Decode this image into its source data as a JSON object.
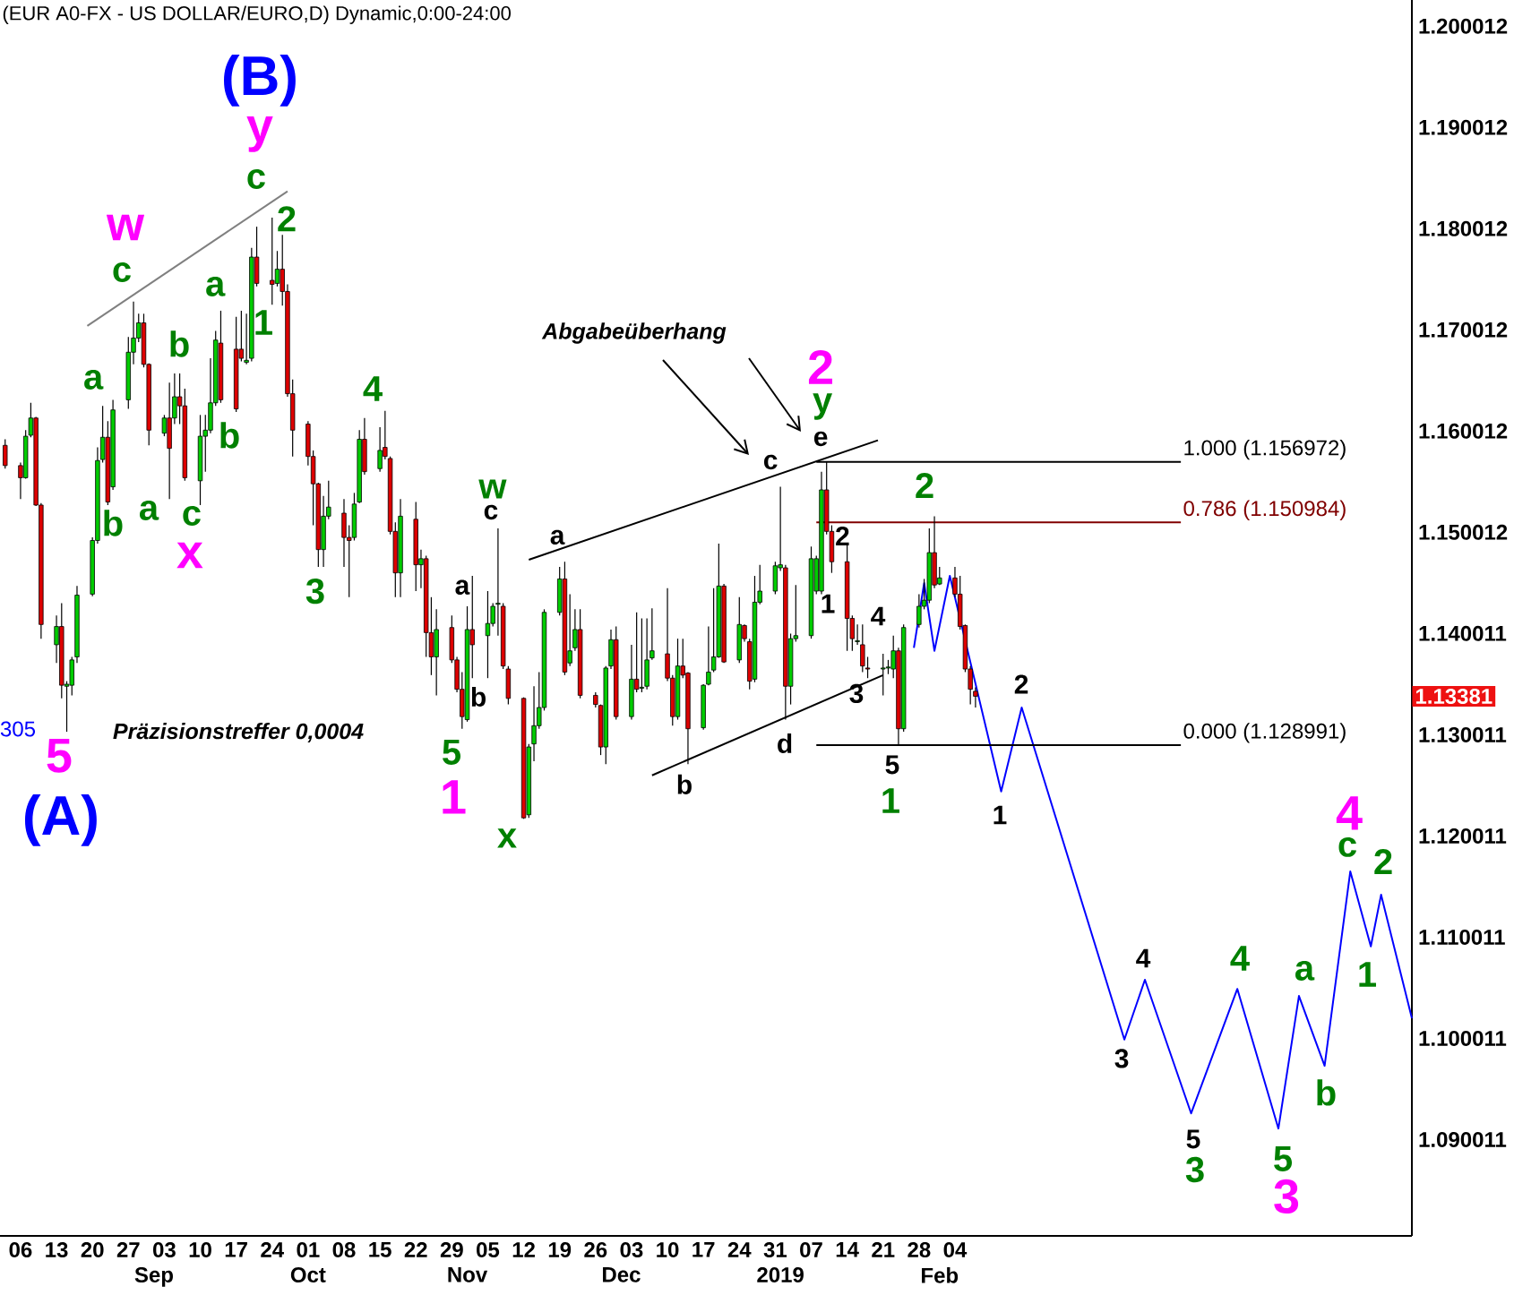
{
  "chart_data": {
    "type": "candlestick",
    "title": "(EUR A0-FX - US DOLLAR/EURO,D) Dynamic,0:00-24:00",
    "xlim": [
      "2018-08-02",
      "2019-05-04"
    ],
    "xticks": [
      {
        "value": "2018-08-06",
        "label": "06"
      },
      {
        "value": "2018-08-13",
        "label": "13"
      },
      {
        "value": "2018-08-20",
        "label": "20"
      },
      {
        "value": "2018-08-27",
        "label": "27"
      },
      {
        "value": "2018-09-03",
        "label": "03"
      },
      {
        "value": "2018-09-10",
        "label": "10"
      },
      {
        "value": "2018-09-17",
        "label": "17"
      },
      {
        "value": "2018-09-24",
        "label": "24"
      },
      {
        "value": "2018-10-01",
        "label": "01"
      },
      {
        "value": "2018-10-08",
        "label": "08"
      },
      {
        "value": "2018-10-15",
        "label": "15"
      },
      {
        "value": "2018-10-22",
        "label": "22"
      },
      {
        "value": "2018-10-29",
        "label": "29"
      },
      {
        "value": "2018-11-05",
        "label": "05"
      },
      {
        "value": "2018-11-12",
        "label": "12"
      },
      {
        "value": "2018-11-19",
        "label": "19"
      },
      {
        "value": "2018-11-26",
        "label": "26"
      },
      {
        "value": "2018-12-03",
        "label": "03"
      },
      {
        "value": "2018-12-10",
        "label": "10"
      },
      {
        "value": "2018-12-17",
        "label": "17"
      },
      {
        "value": "2018-12-24",
        "label": "24"
      },
      {
        "value": "2018-12-31",
        "label": "31"
      },
      {
        "value": "2019-01-07",
        "label": "07"
      },
      {
        "value": "2019-01-14",
        "label": "14"
      },
      {
        "value": "2019-01-21",
        "label": "21"
      },
      {
        "value": "2019-01-28",
        "label": "28"
      },
      {
        "value": "2019-02-04",
        "label": "04"
      }
    ],
    "x2lim": [
      "2018-08-02",
      "2019-05-04"
    ],
    "x2ticks": [
      {
        "value": "2018-09",
        "label": "Sep"
      },
      {
        "value": "2018-10",
        "label": "Oct"
      },
      {
        "value": "2018-11",
        "label": "Nov"
      },
      {
        "value": "2018-12",
        "label": "Dec"
      },
      {
        "value": "2019",
        "label": "2019"
      },
      {
        "value": "2019-02",
        "label": "Feb"
      }
    ],
    "ylim": [
      1.0805,
      1.2026
    ],
    "yticks": [
      1.090011,
      1.100011,
      1.110011,
      1.120011,
      1.130011,
      1.140011,
      1.150012,
      1.160012,
      1.170012,
      1.180012,
      1.190012,
      1.200012
    ],
    "series": [
      {
        "type": "line",
        "color": "#0000ff",
        "x": [
          "2019-01-27",
          "2019-01-29",
          "2019-01-31",
          "2019-02-03",
          "2019-02-13",
          "2019-02-17",
          "2019-03-09",
          "2019-03-13",
          "2019-03-22",
          "2019-03-31",
          "2019-04-08",
          "2019-04-12",
          "2019-04-17",
          "2019-04-22",
          "2019-04-26",
          "2019-04-28",
          "2019-05-04"
        ],
        "values": [
          1.1386,
          1.145,
          1.1383,
          1.1457,
          1.1244,
          1.1327,
          1.0999,
          1.1058,
          1.0926,
          1.1049,
          1.0911,
          1.1042,
          1.0973,
          1.1165,
          1.1091,
          1.1142,
          1.102
        ]
      },
      {
        "type": "line",
        "color": "#808080",
        "x": [
          "2018-08-19",
          "2018-09-27"
        ],
        "values": [
          1.1704,
          1.1837
        ]
      },
      {
        "type": "line",
        "color": "#000000",
        "x": [
          "2018-11-13",
          "2019-01-20"
        ],
        "values": [
          1.1473,
          1.1591
        ]
      },
      {
        "type": "line",
        "color": "#000000",
        "x": [
          "2018-12-07",
          "2019-01-21"
        ],
        "values": [
          1.126,
          1.1359
        ]
      },
      {
        "type": "line",
        "color": "#000000",
        "name": "1.000 (1.156972)",
        "x": [
          "2019-01-08",
          "2019-03-20"
        ],
        "values": [
          1.156972,
          1.156972
        ]
      },
      {
        "type": "line",
        "color": "#800000",
        "name": "0.786 (1.150984)",
        "x": [
          "2019-01-08",
          "2019-03-20"
        ],
        "values": [
          1.150984,
          1.150984
        ]
      },
      {
        "type": "line",
        "color": "#000000",
        "name": "0.000 (1.128991)",
        "x": [
          "2019-01-08",
          "2019-03-20"
        ],
        "values": [
          1.128991,
          1.128991
        ]
      },
      {
        "x": [
          "2018-08-03",
          "2018-08-06",
          "2018-08-07",
          "2018-08-08",
          "2018-08-09",
          "2018-08-10",
          "2018-08-13",
          "2018-08-14",
          "2018-08-15",
          "2018-08-16",
          "2018-08-17",
          "2018-08-20",
          "2018-08-21",
          "2018-08-22",
          "2018-08-23",
          "2018-08-24",
          "2018-08-27",
          "2018-08-28",
          "2018-08-29",
          "2018-08-30",
          "2018-08-31",
          "2018-09-03",
          "2018-09-04",
          "2018-09-05",
          "2018-09-06",
          "2018-09-07",
          "2018-09-10",
          "2018-09-11",
          "2018-09-12",
          "2018-09-13",
          "2018-09-14",
          "2018-09-17",
          "2018-09-18",
          "2018-09-19",
          "2018-09-20",
          "2018-09-21",
          "2018-09-24",
          "2018-09-25",
          "2018-09-26",
          "2018-09-27",
          "2018-09-28",
          "2018-10-01",
          "2018-10-02",
          "2018-10-03",
          "2018-10-04",
          "2018-10-05",
          "2018-10-08",
          "2018-10-09",
          "2018-10-10",
          "2018-10-11",
          "2018-10-12",
          "2018-10-15",
          "2018-10-16",
          "2018-10-17",
          "2018-10-18",
          "2018-10-19",
          "2018-10-22",
          "2018-10-23",
          "2018-10-24",
          "2018-10-25",
          "2018-10-26",
          "2018-10-29",
          "2018-10-30",
          "2018-10-31",
          "2018-11-01",
          "2018-11-02",
          "2018-11-05",
          "2018-11-06",
          "2018-11-07",
          "2018-11-08",
          "2018-11-09",
          "2018-11-12",
          "2018-11-13",
          "2018-11-14",
          "2018-11-15",
          "2018-11-16",
          "2018-11-19",
          "2018-11-20",
          "2018-11-21",
          "2018-11-22",
          "2018-11-23",
          "2018-11-26",
          "2018-11-27",
          "2018-11-28",
          "2018-11-29",
          "2018-11-30",
          "2018-12-03",
          "2018-12-04",
          "2018-12-05",
          "2018-12-06",
          "2018-12-07",
          "2018-12-10",
          "2018-12-11",
          "2018-12-12",
          "2018-12-13",
          "2018-12-14",
          "2018-12-17",
          "2018-12-18",
          "2018-12-19",
          "2018-12-20",
          "2018-12-21",
          "2018-12-24",
          "2018-12-25",
          "2018-12-26",
          "2018-12-27",
          "2018-12-28",
          "2018-12-31",
          "2019-01-01",
          "2019-01-02",
          "2019-01-03",
          "2019-01-04",
          "2019-01-07",
          "2019-01-08",
          "2019-01-09",
          "2019-01-10",
          "2019-01-11",
          "2019-01-14",
          "2019-01-15",
          "2019-01-16",
          "2019-01-17",
          "2019-01-18",
          "2019-01-21",
          "2019-01-22",
          "2019-01-23",
          "2019-01-24",
          "2019-01-25",
          "2019-01-28",
          "2019-01-29",
          "2019-01-30",
          "2019-01-31",
          "2019-02-01",
          "2019-02-04",
          "2019-02-05",
          "2019-02-06",
          "2019-02-07",
          "2019-02-08"
        ],
        "ohlc": [
          [
            1.1586,
            1.1592,
            1.1563,
            1.1566
          ],
          [
            1.1566,
            1.1569,
            1.1533,
            1.1554
          ],
          [
            1.1554,
            1.1601,
            1.1553,
            1.1595
          ],
          [
            1.1596,
            1.1628,
            1.1594,
            1.1613
          ],
          [
            1.1613,
            1.1614,
            1.1526,
            1.1527
          ],
          [
            1.1527,
            1.1529,
            1.1395,
            1.1409
          ],
          [
            1.1389,
            1.1418,
            1.1371,
            1.1407
          ],
          [
            1.1407,
            1.143,
            1.1336,
            1.1349
          ],
          [
            1.1348,
            1.1353,
            1.1303,
            1.135
          ],
          [
            1.1349,
            1.1377,
            1.1339,
            1.1374
          ],
          [
            1.1377,
            1.1447,
            1.1371,
            1.1438
          ],
          [
            1.1439,
            1.1495,
            1.1437,
            1.1492
          ],
          [
            1.1492,
            1.1584,
            1.1489,
            1.1571
          ],
          [
            1.1572,
            1.1625,
            1.1569,
            1.1594
          ],
          [
            1.1594,
            1.161,
            1.1527,
            1.153
          ],
          [
            1.1545,
            1.1631,
            1.1542,
            1.1621
          ],
          [
            1.1631,
            1.1693,
            1.1622,
            1.1678
          ],
          [
            1.1678,
            1.1728,
            1.1666,
            1.1692
          ],
          [
            1.1692,
            1.1716,
            1.1688,
            1.1707
          ],
          [
            1.1707,
            1.1716,
            1.1663,
            1.1666
          ],
          [
            1.1666,
            1.1667,
            1.1586,
            1.1601
          ],
          [
            1.1598,
            1.1616,
            1.1595,
            1.1613
          ],
          [
            1.1613,
            1.1648,
            1.1533,
            1.1583
          ],
          [
            1.1613,
            1.1657,
            1.1607,
            1.1634
          ],
          [
            1.1634,
            1.1657,
            1.1607,
            1.1625
          ],
          [
            1.1625,
            1.1642,
            1.1551,
            1.1554
          ],
          [
            1.1551,
            1.1616,
            1.1527,
            1.1595
          ],
          [
            1.1595,
            1.1616,
            1.156,
            1.1601
          ],
          [
            1.1601,
            1.1672,
            1.1598,
            1.1628
          ],
          [
            1.1628,
            1.1699,
            1.1625,
            1.169
          ],
          [
            1.1687,
            1.1719,
            1.1628,
            1.1631
          ],
          [
            1.1681,
            1.1713,
            1.1619,
            1.1622
          ],
          [
            1.1681,
            1.1719,
            1.1669,
            1.1672
          ],
          [
            1.1668,
            1.1716,
            1.1666,
            1.167
          ],
          [
            1.1672,
            1.1781,
            1.1669,
            1.1772
          ],
          [
            1.1772,
            1.1802,
            1.1743,
            1.1746
          ],
          [
            1.1749,
            1.1811,
            1.1725,
            1.1745
          ],
          [
            1.1746,
            1.1778,
            1.1743,
            1.176
          ],
          [
            1.176,
            1.1794,
            1.1724,
            1.1738
          ],
          [
            1.1738,
            1.1745,
            1.1634,
            1.1637
          ],
          [
            1.1637,
            1.1651,
            1.1575,
            1.1601
          ],
          [
            1.1607,
            1.161,
            1.1566,
            1.1575
          ],
          [
            1.1575,
            1.1581,
            1.1507,
            1.1548
          ],
          [
            1.1548,
            1.1549,
            1.1466,
            1.1483
          ],
          [
            1.1483,
            1.1536,
            1.1466,
            1.1516
          ],
          [
            1.1516,
            1.1551,
            1.1513,
            1.1525
          ],
          [
            1.1519,
            1.1533,
            1.1466,
            1.1495
          ],
          [
            1.1495,
            1.1507,
            1.1436,
            1.1492
          ],
          [
            1.1495,
            1.1539,
            1.1492,
            1.1528
          ],
          [
            1.153,
            1.1601,
            1.1529,
            1.1592
          ],
          [
            1.1592,
            1.1613,
            1.1557,
            1.156
          ],
          [
            1.1563,
            1.1604,
            1.156,
            1.1581
          ],
          [
            1.1584,
            1.162,
            1.1572,
            1.1575
          ],
          [
            1.1573,
            1.1575,
            1.1498,
            1.1501
          ],
          [
            1.1501,
            1.151,
            1.1436,
            1.146
          ],
          [
            1.146,
            1.1533,
            1.1436,
            1.1516
          ],
          [
            1.1513,
            1.153,
            1.1442,
            1.1468
          ],
          [
            1.1468,
            1.1483,
            1.1445,
            1.1474
          ],
          [
            1.1474,
            1.1477,
            1.1377,
            1.1401
          ],
          [
            1.1401,
            1.1436,
            1.1359,
            1.1377
          ],
          [
            1.1377,
            1.1424,
            1.1339,
            1.1404
          ],
          [
            1.1406,
            1.1418,
            1.1371,
            1.1374
          ],
          [
            1.1374,
            1.1377,
            1.1342,
            1.1345
          ],
          [
            1.1345,
            1.1362,
            1.1306,
            1.1318
          ],
          [
            1.1315,
            1.1427,
            1.1313,
            1.1404
          ],
          [
            1.1404,
            1.1457,
            1.1356,
            1.1389
          ],
          [
            1.1398,
            1.1442,
            1.1356,
            1.141
          ],
          [
            1.141,
            1.143,
            1.1407,
            1.1427
          ],
          [
            1.1429,
            1.1504,
            1.1398,
            1.143
          ],
          [
            1.1427,
            1.143,
            1.1365,
            1.1368
          ],
          [
            1.1365,
            1.1368,
            1.133,
            1.1336
          ],
          [
            1.1336,
            1.1337,
            1.1217,
            1.1218
          ],
          [
            1.1221,
            1.1291,
            1.1218,
            1.1288
          ],
          [
            1.1291,
            1.1348,
            1.1274,
            1.1309
          ],
          [
            1.1309,
            1.1362,
            1.1306,
            1.1327
          ],
          [
            1.1327,
            1.1424,
            1.1324,
            1.1421
          ],
          [
            1.1421,
            1.1466,
            1.1418,
            1.1454
          ],
          [
            1.1454,
            1.1471,
            1.1359,
            1.1362
          ],
          [
            1.1371,
            1.1439,
            1.1368,
            1.1383
          ],
          [
            1.1386,
            1.1424,
            1.1383,
            1.1404
          ],
          [
            1.1404,
            1.1424,
            1.1336,
            1.1339
          ],
          [
            1.1339,
            1.1342,
            1.1327,
            1.133
          ],
          [
            1.1329,
            1.133,
            1.128,
            1.1288
          ],
          [
            1.1288,
            1.1368,
            1.1271,
            1.1366
          ],
          [
            1.1368,
            1.1404,
            1.1365,
            1.1394
          ],
          [
            1.1394,
            1.1407,
            1.1315,
            1.1318
          ],
          [
            1.1318,
            1.1389,
            1.1315,
            1.1355
          ],
          [
            1.1355,
            1.1421,
            1.1342,
            1.1345
          ],
          [
            1.1346,
            1.1415,
            1.1342,
            1.1347
          ],
          [
            1.1348,
            1.1415,
            1.1345,
            1.1374
          ],
          [
            1.1376,
            1.1425,
            1.1374,
            1.1383
          ],
          [
            1.138,
            1.1445,
            1.1353,
            1.1356
          ],
          [
            1.1356,
            1.1359,
            1.1309,
            1.1318
          ],
          [
            1.1318,
            1.1395,
            1.1315,
            1.1368
          ],
          [
            1.1368,
            1.1395,
            1.1356,
            1.1359
          ],
          [
            1.1361,
            1.1362,
            1.1271,
            1.1306
          ],
          [
            1.1307,
            1.135,
            1.1305,
            1.1349
          ],
          [
            1.135,
            1.1407,
            1.1349,
            1.1362
          ],
          [
            1.1364,
            1.1445,
            1.1362,
            1.1377
          ],
          [
            1.1377,
            1.1489,
            1.1376,
            1.1447
          ],
          [
            1.1447,
            1.1449,
            1.1371,
            1.1372
          ],
          [
            1.1374,
            1.1436,
            1.1371,
            1.1409
          ],
          [
            1.1408,
            1.1409,
            1.1392,
            1.1395
          ],
          [
            1.1392,
            1.1395,
            1.1345,
            1.1353
          ],
          [
            1.1355,
            1.1457,
            1.1352,
            1.1431
          ],
          [
            1.1431,
            1.1468,
            1.1429,
            1.1442
          ],
          [
            1.1442,
            1.1471,
            1.1439,
            1.1467
          ],
          [
            1.1465,
            1.1545,
            1.1462,
            1.1468
          ],
          [
            1.1465,
            1.1468,
            1.1315,
            1.1348
          ],
          [
            1.1348,
            1.14,
            1.133,
            1.1395
          ],
          [
            1.1395,
            1.1448,
            1.1392,
            1.1398
          ],
          [
            1.1398,
            1.1486,
            1.1395,
            1.1474
          ],
          [
            1.1442,
            1.1477,
            1.1439,
            1.1474
          ],
          [
            1.1442,
            1.156,
            1.1439,
            1.1542
          ],
          [
            1.1542,
            1.157,
            1.1498,
            1.1501
          ],
          [
            1.1501,
            1.1507,
            1.146,
            1.1471
          ],
          [
            1.1471,
            1.1489,
            1.1383,
            1.1415
          ],
          [
            1.1415,
            1.1418,
            1.1383,
            1.1395
          ],
          [
            1.1392,
            1.1409,
            1.1389,
            1.1393
          ],
          [
            1.1389,
            1.1409,
            1.1362,
            1.1368
          ],
          [
            1.1366,
            1.1377,
            1.1356,
            1.1365
          ],
          [
            1.1365,
            1.138,
            1.1339,
            1.1366
          ],
          [
            1.1366,
            1.1374,
            1.136,
            1.1367
          ],
          [
            1.1365,
            1.1398,
            1.1356,
            1.1383
          ],
          [
            1.1383,
            1.1386,
            1.129,
            1.1306
          ],
          [
            1.1306,
            1.1409,
            1.1303,
            1.1406
          ],
          [
            1.1409,
            1.1439,
            1.1406,
            1.1427
          ],
          [
            1.1427,
            1.1454,
            1.1424,
            1.1433
          ],
          [
            1.1433,
            1.1504,
            1.143,
            1.148
          ],
          [
            1.148,
            1.1516,
            1.1445,
            1.1448
          ],
          [
            1.1449,
            1.1466,
            1.1448,
            1.1455
          ],
          [
            1.1455,
            1.1466,
            1.1436,
            1.1439
          ],
          [
            1.1439,
            1.1457,
            1.1404,
            1.1407
          ],
          [
            1.1408,
            1.1409,
            1.1362,
            1.1365
          ],
          [
            1.1365,
            1.1368,
            1.133,
            1.1345
          ],
          [
            1.1343,
            1.1347,
            1.1327,
            1.13381
          ]
        ],
        "colors": [
          "#dd0000",
          "#dd0000",
          "#00cc00",
          "#00cc00",
          "#dd0000",
          "#dd0000",
          "#00cc00",
          "#dd0000",
          "#00cc00",
          "#00cc00",
          "#00cc00",
          "#00cc00",
          "#00cc00",
          "#00cc00",
          "#dd0000",
          "#00cc00",
          "#00cc00",
          "#00cc00",
          "#00cc00",
          "#dd0000",
          "#dd0000",
          "#00cc00",
          "#dd0000",
          "#00cc00",
          "#dd0000",
          "#dd0000",
          "#00cc00",
          "#00cc00",
          "#00cc00",
          "#00cc00",
          "#dd0000",
          "#dd0000",
          "#dd0000",
          "#00cc00",
          "#00cc00",
          "#dd0000",
          "#dd0000",
          "#00cc00",
          "#dd0000",
          "#dd0000",
          "#dd0000",
          "#dd0000",
          "#dd0000",
          "#dd0000",
          "#00cc00",
          "#00cc00",
          "#dd0000",
          "#dd0000",
          "#00cc00",
          "#00cc00",
          "#dd0000",
          "#00cc00",
          "#dd0000",
          "#dd0000",
          "#dd0000",
          "#00cc00",
          "#dd0000",
          "#00cc00",
          "#dd0000",
          "#dd0000",
          "#00cc00",
          "#dd0000",
          "#dd0000",
          "#dd0000",
          "#00cc00",
          "#dd0000",
          "#00cc00",
          "#00cc00",
          "#00cc00",
          "#dd0000",
          "#dd0000",
          "#dd0000",
          "#00cc00",
          "#00cc00",
          "#00cc00",
          "#00cc00",
          "#00cc00",
          "#dd0000",
          "#00cc00",
          "#00cc00",
          "#dd0000",
          "#dd0000",
          "#dd0000",
          "#00cc00",
          "#00cc00",
          "#dd0000",
          "#00cc00",
          "#dd0000",
          "#00cc00",
          "#00cc00",
          "#00cc00",
          "#dd0000",
          "#dd0000",
          "#00cc00",
          "#dd0000",
          "#dd0000",
          "#00cc00",
          "#00cc00",
          "#00cc00",
          "#00cc00",
          "#dd0000",
          "#00cc00",
          "#dd0000",
          "#dd0000",
          "#00cc00",
          "#00cc00",
          "#00cc00",
          "#00cc00",
          "#dd0000",
          "#00cc00",
          "#00cc00",
          "#00cc00",
          "#00cc00",
          "#00cc00",
          "#dd0000",
          "#dd0000",
          "#dd0000",
          "#dd0000",
          "#00cc00",
          "#dd0000",
          "#dd0000",
          "#00cc00",
          "#00cc00",
          "#00cc00",
          "#dd0000",
          "#00cc00",
          "#00cc00",
          "#00cc00",
          "#00cc00",
          "#dd0000",
          "#00cc00",
          "#dd0000",
          "#dd0000",
          "#dd0000",
          "#dd0000",
          "#dd0000"
        ]
      }
    ],
    "annotations": [
      {
        "text": "(A)",
        "x": "2018-08-15",
        "y": 1.1303
      },
      {
        "text": "(B)",
        "x": "2018-09-24",
        "y": 1.1811
      },
      "305",
      "Präzisionstreffer 0,0004",
      "Abgabeüberhang",
      {
        "text": "5",
        "x": "2018-08-15",
        "y": 1.1303
      },
      {
        "text": "w",
        "x": "2018-08-28",
        "y": 1.1728
      },
      {
        "text": "y",
        "x": "2018-09-24",
        "y": 1.1811
      },
      {
        "text": "x",
        "x": "2018-09-10",
        "y": 1.1527
      },
      {
        "text": "1",
        "x": "2018-10-31",
        "y": 1.1306
      },
      {
        "text": "2",
        "x": "2019-01-10",
        "y": 1.157
      },
      {
        "text": "3",
        "x": "2019-04-08",
        "y": 1.0911
      },
      {
        "text": "4",
        "x": "2019-04-22",
        "y": 1.1165
      },
      {
        "text": "c",
        "x": "2018-08-28",
        "y": 1.1728
      },
      {
        "text": "a",
        "x": "2018-08-22",
        "y": 1.1625
      },
      {
        "text": "b",
        "x": "2018-08-23",
        "y": 1.1527
      },
      {
        "text": "b",
        "x": "2018-09-05",
        "y": 1.1657
      },
      {
        "text": "a",
        "x": "2018-09-04",
        "y": 1.1533
      },
      {
        "text": "c",
        "x": "2018-09-10",
        "y": 1.1527
      },
      {
        "text": "a",
        "x": "2018-09-13",
        "y": 1.1699
      },
      {
        "text": "b",
        "x": "2018-09-17",
        "y": 1.1619
      },
      {
        "text": "c",
        "x": "2018-09-24",
        "y": 1.1811
      },
      {
        "text": "2",
        "x": "2018-09-26",
        "y": 1.1794
      },
      {
        "text": "1",
        "x": "2018-09-24",
        "y": 1.1725
      },
      {
        "text": "4",
        "x": "2018-10-16",
        "y": 1.162
      },
      {
        "text": "3",
        "x": "2018-10-03",
        "y": 1.1466
      },
      {
        "text": "5",
        "x": "2018-10-31",
        "y": 1.1306
      },
      {
        "text": "w",
        "x": "2018-11-07",
        "y": 1.1504
      },
      {
        "text": "x",
        "x": "2018-11-12",
        "y": 1.1217
      },
      {
        "text": "y",
        "x": "2019-01-10",
        "y": 1.157
      },
      {
        "text": "2",
        "x": "2019-01-31",
        "y": 1.1516
      },
      {
        "text": "1",
        "x": "2019-01-24",
        "y": 1.129
      },
      {
        "text": "3",
        "x": "2019-03-22",
        "y": 1.0926
      },
      {
        "text": "4",
        "x": "2019-03-31",
        "y": 1.1049
      },
      {
        "text": "5",
        "x": "2019-04-08",
        "y": 1.0911
      },
      {
        "text": "a",
        "x": "2019-04-12",
        "y": 1.1042
      },
      {
        "text": "b",
        "x": "2019-04-17",
        "y": 1.0973
      },
      {
        "text": "c",
        "x": "2019-04-22",
        "y": 1.1165
      },
      {
        "text": "1",
        "x": "2019-04-26",
        "y": 1.1091
      },
      {
        "text": "2",
        "x": "2019-04-28",
        "y": 1.1142
      },
      {
        "text": "a",
        "x": "2018-11-01",
        "y": 1.1427
      },
      {
        "text": "c",
        "x": "2018-11-07",
        "y": 1.1504
      },
      {
        "text": "b",
        "x": "2018-11-05",
        "y": 1.1356
      },
      {
        "text": "a",
        "x": "2018-11-19",
        "y": 1.1466
      },
      {
        "text": "b",
        "x": "2018-12-14",
        "y": 1.1271
      },
      {
        "text": "c",
        "x": "2019-01-01",
        "y": 1.1545
      },
      {
        "text": "d",
        "x": "2019-01-02",
        "y": 1.1315
      },
      {
        "text": "e",
        "x": "2019-01-10",
        "y": 1.157
      },
      {
        "text": "2",
        "x": "2019-01-11",
        "y": 1.1507
      },
      {
        "text": "1",
        "x": "2019-01-11",
        "y": 1.146
      },
      {
        "text": "4",
        "x": "2019-01-23",
        "y": 1.1398
      },
      {
        "text": "3",
        "x": "2019-01-17",
        "y": 1.1362
      },
      {
        "text": "5",
        "x": "2019-01-24",
        "y": 1.129
      },
      {
        "text": "1",
        "x": "2019-02-13",
        "y": 1.1244
      },
      {
        "text": "2",
        "x": "2019-02-17",
        "y": 1.1327
      },
      {
        "text": "3",
        "x": "2019-03-09",
        "y": 1.0999
      },
      {
        "text": "4",
        "x": "2019-03-13",
        "y": 1.1058
      },
      {
        "text": "5",
        "x": "2019-03-22",
        "y": 1.0926
      },
      "1.13381"
    ]
  }
}
